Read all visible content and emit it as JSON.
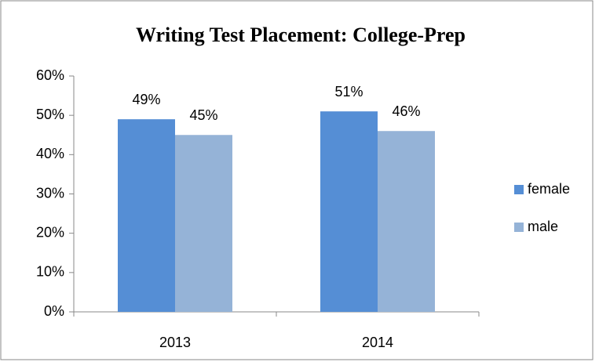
{
  "chart_data": {
    "type": "bar",
    "title": "Writing Test Placement: College-Prep",
    "categories": [
      "2013",
      "2014"
    ],
    "series": [
      {
        "name": "female",
        "color": "#558ed5",
        "values": [
          49,
          51
        ],
        "value_labels": [
          "49%",
          "51%"
        ]
      },
      {
        "name": "male",
        "color": "#95b3d7",
        "values": [
          45,
          46
        ],
        "value_labels": [
          "45%",
          "46%"
        ]
      }
    ],
    "ylim": [
      0,
      60
    ],
    "yticks": [
      {
        "value": 0,
        "label": "0%"
      },
      {
        "value": 10,
        "label": "10%"
      },
      {
        "value": 20,
        "label": "20%"
      },
      {
        "value": 30,
        "label": "30%"
      },
      {
        "value": 40,
        "label": "40%"
      },
      {
        "value": 50,
        "label": "50%"
      },
      {
        "value": 60,
        "label": "60%"
      }
    ],
    "legend": "right"
  }
}
